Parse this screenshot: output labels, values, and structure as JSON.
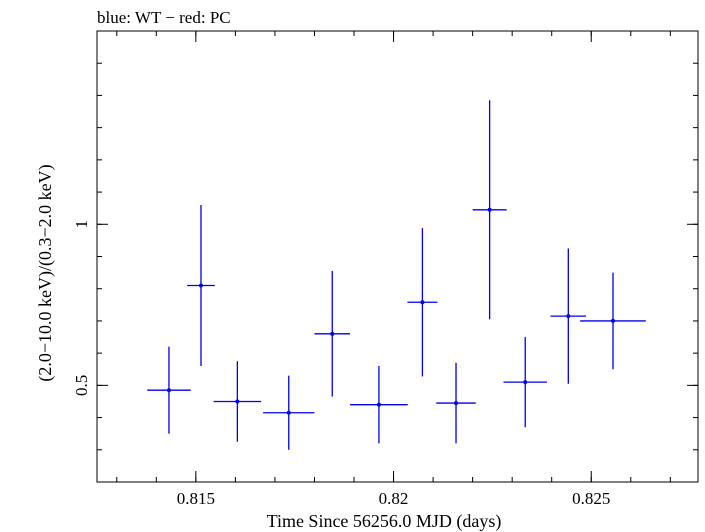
{
  "chart_data": {
    "type": "scatter",
    "title": "blue: WT − red: PC",
    "xlabel": "Time Since 56256.0 MJD (days)",
    "ylabel": "(2.0−10.0 keV)/(0.3−2.0 keV)",
    "xlim": [
      0.8125,
      0.8277
    ],
    "ylim": [
      0.2,
      1.6
    ],
    "x_ticks": [
      0.815,
      0.82,
      0.825
    ],
    "x_tick_labels": [
      "0.815",
      "0.82",
      "0.825"
    ],
    "y_ticks": [
      0.5,
      1.0
    ],
    "y_tick_labels": [
      "0.5",
      "1"
    ],
    "grid": false,
    "series": [
      {
        "color": "#0000ee",
        "points": [
          {
            "x": 0.81432,
            "xerr": 0.00055,
            "y": 0.485,
            "yerr": [
              0.135,
              0.135
            ]
          },
          {
            "x": 0.81513,
            "xerr": 0.00035,
            "y": 0.81,
            "yerr": [
              0.25,
              0.25
            ]
          },
          {
            "x": 0.81605,
            "xerr": 0.0006,
            "y": 0.45,
            "yerr": [
              0.125,
              0.125
            ]
          },
          {
            "x": 0.81735,
            "xerr": 0.00065,
            "y": 0.415,
            "yerr": [
              0.115,
              0.115
            ]
          },
          {
            "x": 0.81845,
            "xerr": 0.00045,
            "y": 0.66,
            "yerr": [
              0.195,
              0.195
            ]
          },
          {
            "x": 0.81963,
            "xerr": 0.00073,
            "y": 0.44,
            "yerr": [
              0.12,
              0.12
            ]
          },
          {
            "x": 0.82073,
            "xerr": 0.00038,
            "y": 0.758,
            "yerr": [
              0.23,
              0.23
            ]
          },
          {
            "x": 0.82158,
            "xerr": 0.0005,
            "y": 0.445,
            "yerr": [
              0.125,
              0.125
            ]
          },
          {
            "x": 0.82243,
            "xerr": 0.00043,
            "y": 1.045,
            "yerr": [
              0.34,
              0.34
            ]
          },
          {
            "x": 0.82333,
            "xerr": 0.00055,
            "y": 0.51,
            "yerr": [
              0.14,
              0.14
            ]
          },
          {
            "x": 0.82442,
            "xerr": 0.00045,
            "y": 0.715,
            "yerr": [
              0.21,
              0.21
            ]
          },
          {
            "x": 0.82555,
            "xerr": 0.00083,
            "y": 0.7,
            "yerr": [
              0.15,
              0.15
            ]
          }
        ]
      }
    ]
  }
}
